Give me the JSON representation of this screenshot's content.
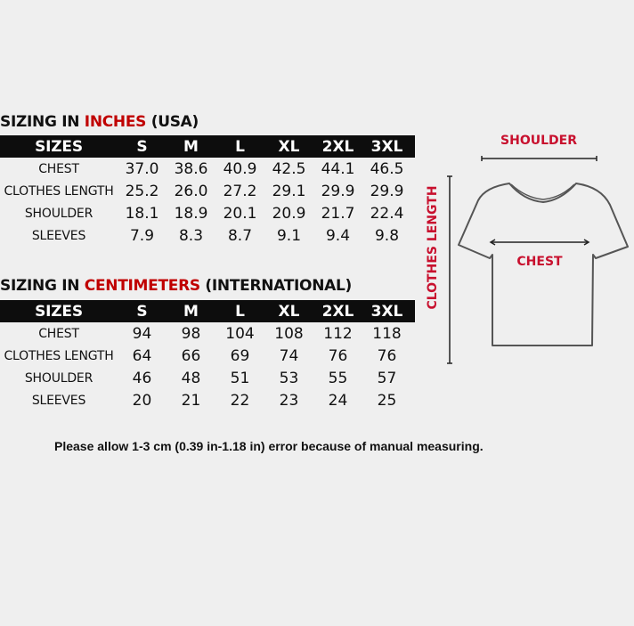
{
  "inches": {
    "title_prefix": "SIZING IN ",
    "title_highlight": "INCHES",
    "title_suffix": " (USA)",
    "header": [
      "SIZES",
      "S",
      "M",
      "L",
      "XL",
      "2XL",
      "3XL"
    ],
    "rows": [
      {
        "label": "CHEST",
        "values": [
          "37.0",
          "38.6",
          "40.9",
          "42.5",
          "44.1",
          "46.5"
        ]
      },
      {
        "label": "CLOTHES LENGTH",
        "values": [
          "25.2",
          "26.0",
          "27.2",
          "29.1",
          "29.9",
          "29.9"
        ]
      },
      {
        "label": "SHOULDER",
        "values": [
          "18.1",
          "18.9",
          "20.1",
          "20.9",
          "21.7",
          "22.4"
        ]
      },
      {
        "label": "SLEEVES",
        "values": [
          "7.9",
          "8.3",
          "8.7",
          "9.1",
          "9.4",
          "9.8"
        ]
      }
    ]
  },
  "centimeters": {
    "title_prefix": "SIZING IN ",
    "title_highlight": "CENTIMETERS",
    "title_suffix": " (INTERNATIONAL)",
    "header": [
      "SIZES",
      "S",
      "M",
      "L",
      "XL",
      "2XL",
      "3XL"
    ],
    "rows": [
      {
        "label": "CHEST",
        "values": [
          "94",
          "98",
          "104",
          "108",
          "112",
          "118"
        ]
      },
      {
        "label": "CLOTHES LENGTH",
        "values": [
          "64",
          "66",
          "69",
          "74",
          "76",
          "76"
        ]
      },
      {
        "label": "SHOULDER",
        "values": [
          "46",
          "48",
          "51",
          "53",
          "55",
          "57"
        ]
      },
      {
        "label": "SLEEVES",
        "values": [
          "20",
          "21",
          "22",
          "23",
          "24",
          "25"
        ]
      }
    ]
  },
  "diagram": {
    "shoulder_label": "SHOULDER",
    "chest_label": "CHEST",
    "length_label": "CLOTHES LENGTH",
    "label_color": "#c8102e"
  },
  "note": "Please allow 1-3 cm (0.39 in-1.18 in) error because of manual measuring.",
  "colors": {
    "highlight": "#c00000",
    "header_bg": "#0d0d0d",
    "background": "#efefef"
  }
}
